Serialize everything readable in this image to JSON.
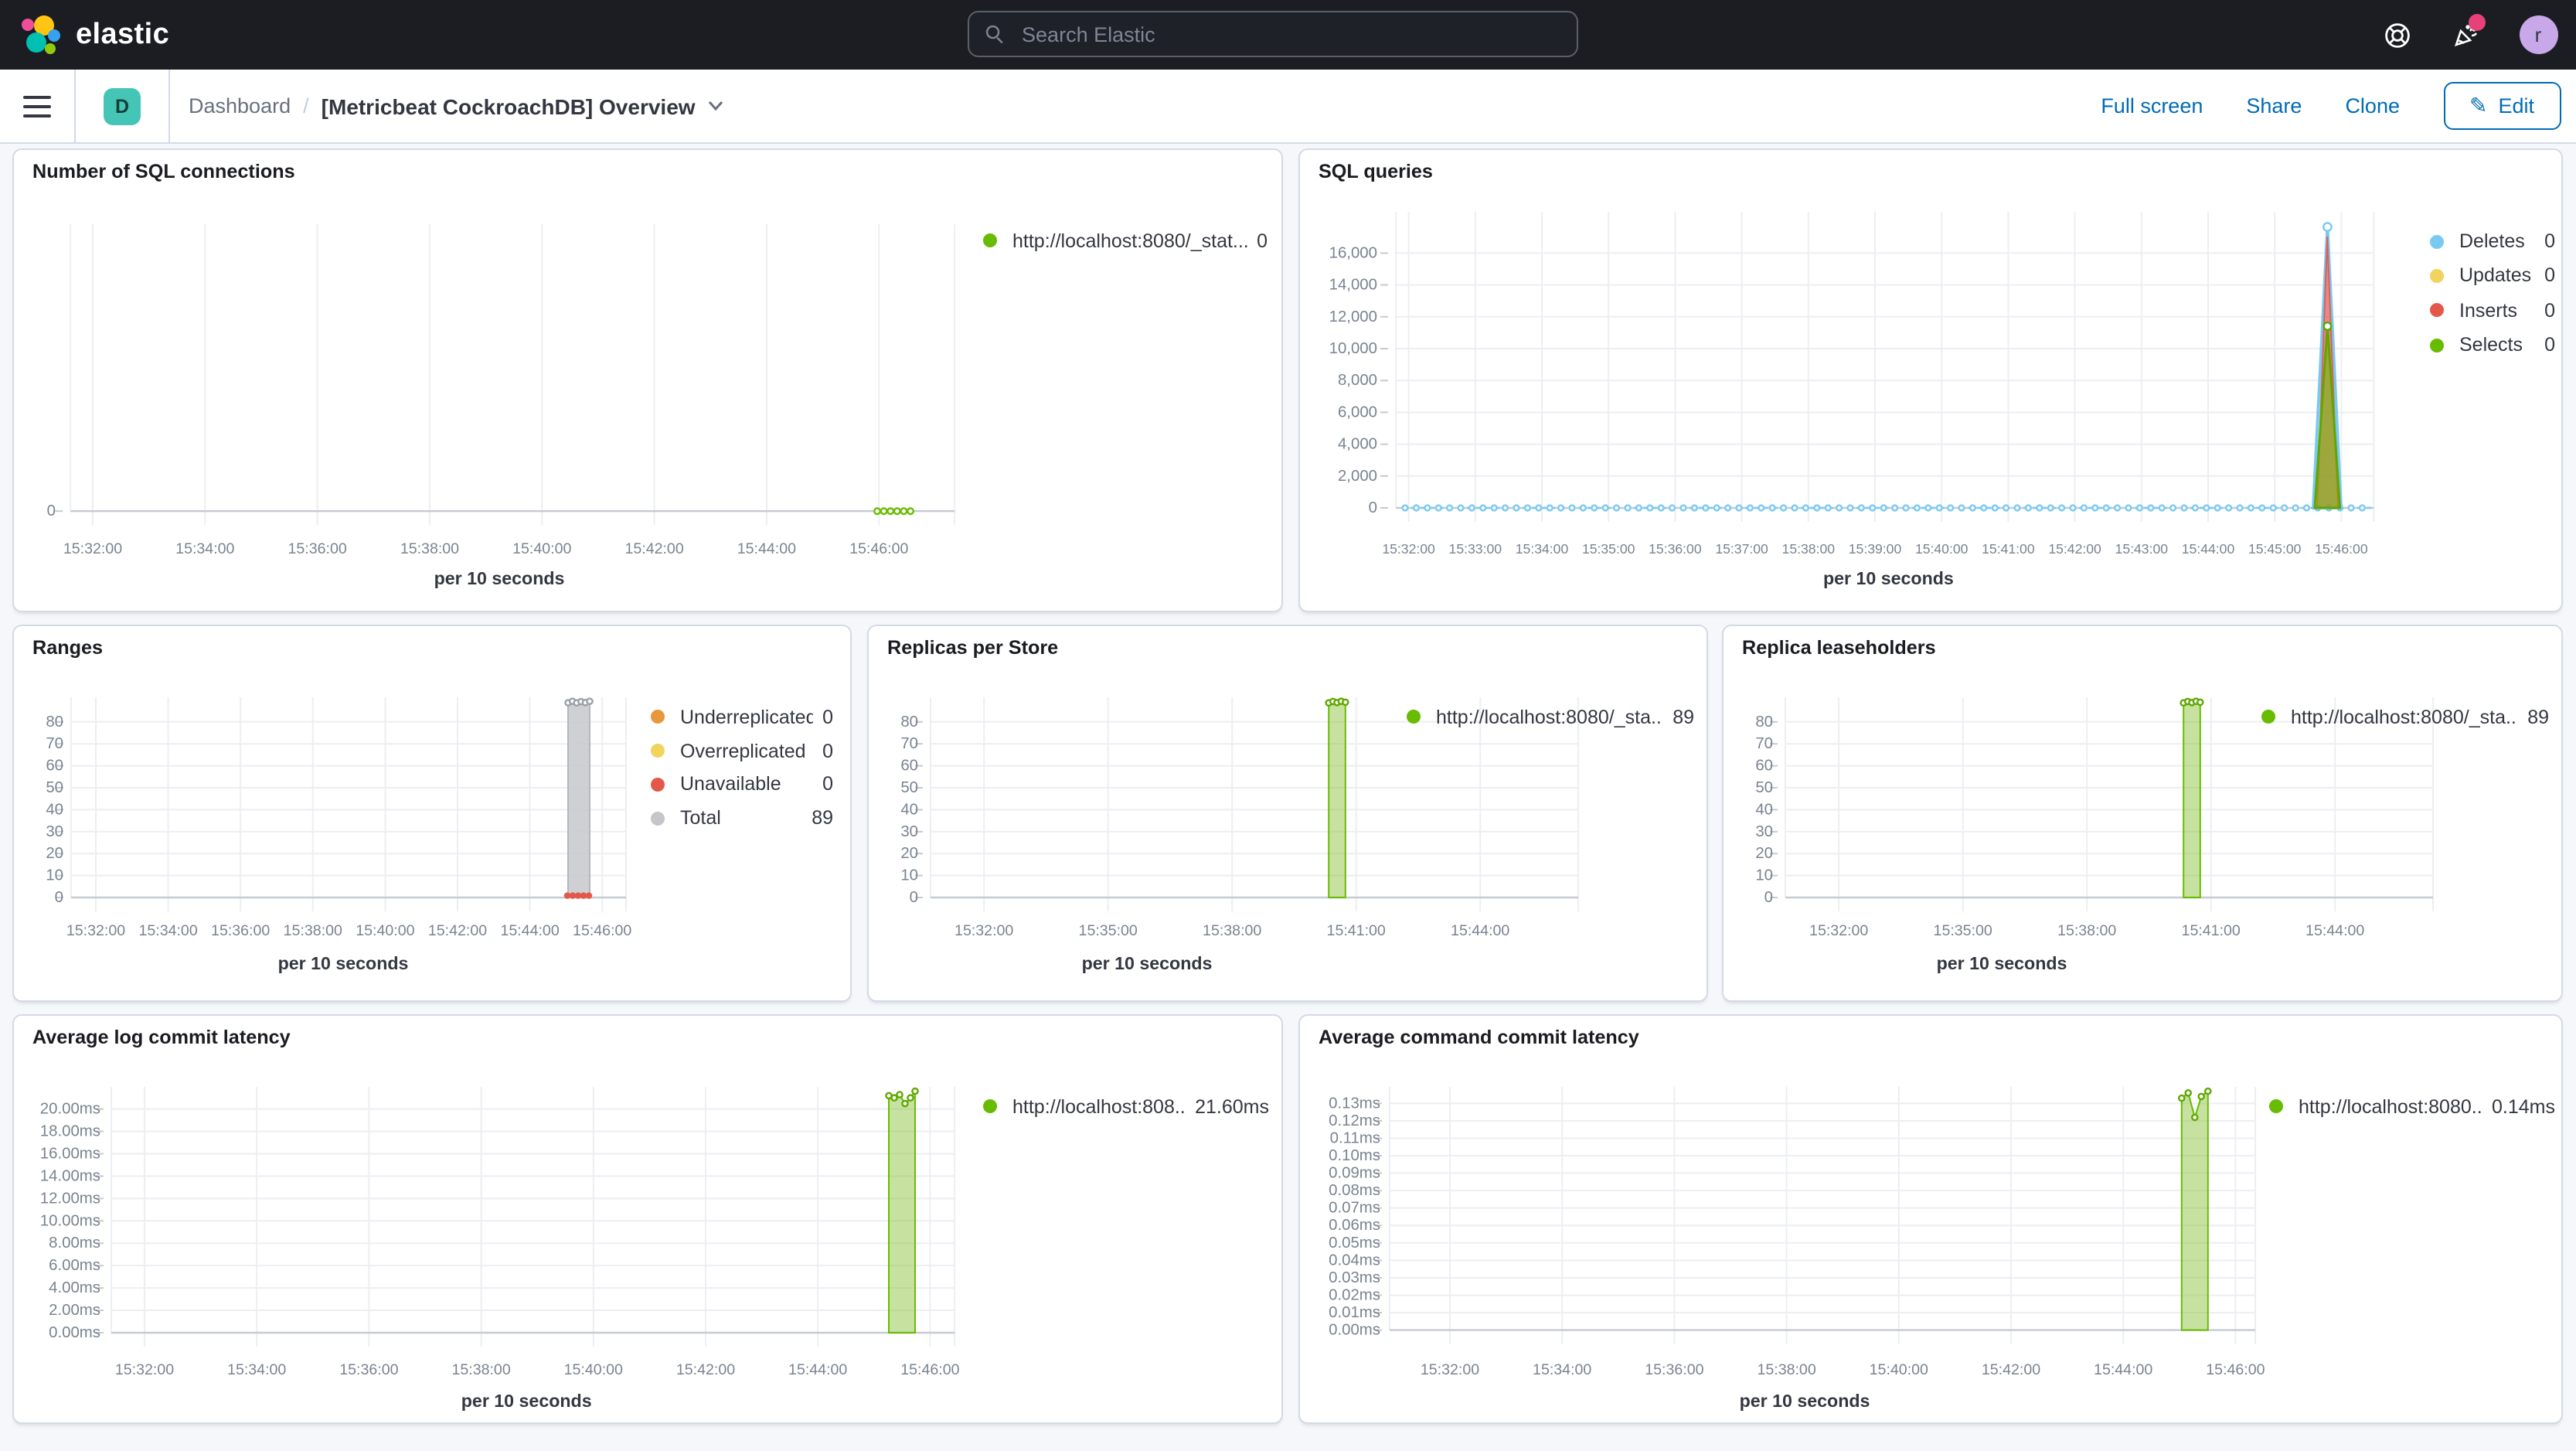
{
  "navbar": {
    "brand": "elastic",
    "search_placeholder": "Search Elastic",
    "avatar_initial": "r",
    "icons": [
      "help-icon",
      "newsfeed-icon",
      "user-avatar"
    ]
  },
  "toolbar": {
    "space_initial": "D",
    "breadcrumb_root": "Dashboard",
    "breadcrumb_sep": "/",
    "title": "[Metricbeat CockroachDB] Overview",
    "actions": [
      "Full screen",
      "Share",
      "Clone"
    ],
    "edit_label": "Edit"
  },
  "palette": {
    "header_bg": "#1B1D23",
    "link_blue": "#006BB4",
    "badge_teal": "#45C5B6",
    "avatar_purple": "#C8A8E9",
    "notification_pink": "#E7417A",
    "panel_border": "#D3DAE6",
    "page_bg": "#F5F7FA",
    "series_green": "#68BC00",
    "series_blue": "#79C9F2",
    "series_yellow": "#F1D35E",
    "series_red": "#E4584C",
    "series_orange": "#E8973C",
    "series_grey": "#C4C6C9"
  },
  "chart_data": [
    {
      "id": "sql_connections",
      "type": "line",
      "title": "Number of SQL connections",
      "x_label": "per 10 seconds",
      "x_ticks": [
        "15:32:00",
        "15:34:00",
        "15:36:00",
        "15:38:00",
        "15:40:00",
        "15:42:00",
        "15:44:00",
        "15:46:00"
      ],
      "y_ticks": [
        "0"
      ],
      "ylim": [
        0,
        1
      ],
      "legend_position": "right",
      "legend": [
        {
          "label": "http://localhost:8080/_stat...",
          "value": "0",
          "color": "#68BC00"
        }
      ],
      "series": [
        {
          "name": "http://localhost:8080/_stat...",
          "color": "#68BC00",
          "x": [
            "15:45:50",
            "15:46:00",
            "15:46:10",
            "15:46:20",
            "15:46:30",
            "15:46:40"
          ],
          "values": [
            0,
            0,
            0,
            0,
            0,
            0
          ]
        }
      ]
    },
    {
      "id": "sql_queries",
      "type": "line",
      "title": "SQL queries",
      "x_label": "per 10 seconds",
      "x_ticks": [
        "15:32:00",
        "15:33:00",
        "15:34:00",
        "15:35:00",
        "15:36:00",
        "15:37:00",
        "15:38:00",
        "15:39:00",
        "15:40:00",
        "15:41:00",
        "15:42:00",
        "15:43:00",
        "15:44:00",
        "15:45:00",
        "15:46:00"
      ],
      "y_ticks": [
        "0",
        "2,000",
        "4,000",
        "6,000",
        "8,000",
        "10,000",
        "12,000",
        "14,000",
        "16,000"
      ],
      "ylim": [
        0,
        18000
      ],
      "legend_position": "right",
      "legend": [
        {
          "label": "Deletes",
          "value": "0",
          "color": "#79C9F2"
        },
        {
          "label": "Updates",
          "value": "0",
          "color": "#F1D35E"
        },
        {
          "label": "Inserts",
          "value": "0",
          "color": "#E4584C"
        },
        {
          "label": "Selects",
          "value": "0",
          "color": "#68BC00"
        }
      ],
      "series": [
        {
          "name": "Deletes",
          "color": "#79C9F2",
          "baseline_value": 0,
          "spike": {
            "time": "15:45:50",
            "peak": 17600
          }
        },
        {
          "name": "Updates",
          "color": "#F1D35E",
          "baseline_value": 0,
          "spike": null
        },
        {
          "name": "Inserts",
          "color": "#E4584C",
          "baseline_value": 0,
          "spike": {
            "time": "15:45:50",
            "peak": 17300
          }
        },
        {
          "name": "Selects",
          "color": "#68BC00",
          "baseline_value": 0,
          "spike": {
            "time": "15:45:50",
            "peak": 11400
          }
        }
      ]
    },
    {
      "id": "ranges",
      "type": "area",
      "title": "Ranges",
      "x_label": "per 10 seconds",
      "x_ticks": [
        "15:32:00",
        "15:34:00",
        "15:36:00",
        "15:38:00",
        "15:40:00",
        "15:42:00",
        "15:44:00",
        "15:46:00"
      ],
      "y_ticks": [
        "0",
        "10",
        "20",
        "30",
        "40",
        "50",
        "60",
        "70",
        "80"
      ],
      "ylim": [
        0,
        91
      ],
      "legend_position": "right",
      "legend": [
        {
          "label": "Underreplicated",
          "value": "0",
          "color": "#E8973C"
        },
        {
          "label": "Overreplicated",
          "value": "0",
          "color": "#F1D35E"
        },
        {
          "label": "Unavailable",
          "value": "0",
          "color": "#E4584C"
        },
        {
          "label": "Total",
          "value": "89",
          "color": "#C4C6C9"
        }
      ],
      "series": [
        {
          "name": "Total",
          "color": "#C4C6C9",
          "time": "~15:45:30-15:46:00",
          "values": [
            89,
            89,
            89,
            89,
            89,
            89
          ]
        },
        {
          "name": "Unavailable",
          "color": "#E4584C",
          "time": "~15:45:30-15:46:00",
          "values": [
            0,
            0,
            0,
            0,
            0
          ]
        },
        {
          "name": "Underreplicated",
          "color": "#E8973C",
          "values": [
            0
          ]
        },
        {
          "name": "Overreplicated",
          "color": "#F1D35E",
          "values": [
            0
          ]
        }
      ]
    },
    {
      "id": "replicas_per_store",
      "type": "area",
      "title": "Replicas per Store",
      "x_label": "per 10 seconds",
      "x_ticks": [
        "15:32:00",
        "15:35:00",
        "15:38:00",
        "15:41:00",
        "15:44:00"
      ],
      "y_ticks": [
        "0",
        "10",
        "20",
        "30",
        "40",
        "50",
        "60",
        "70",
        "80"
      ],
      "ylim": [
        0,
        91
      ],
      "legend_position": "right",
      "legend": [
        {
          "label": "http://localhost:8080/_sta...",
          "value": "89",
          "color": "#68BC00"
        }
      ],
      "series": [
        {
          "name": "http://localhost:8080/_sta...",
          "color": "#68BC00",
          "values": [
            89,
            89,
            89,
            89,
            89
          ]
        }
      ]
    },
    {
      "id": "replica_leaseholders",
      "type": "area",
      "title": "Replica leaseholders",
      "x_label": "per 10 seconds",
      "x_ticks": [
        "15:32:00",
        "15:35:00",
        "15:38:00",
        "15:41:00",
        "15:44:00"
      ],
      "y_ticks": [
        "0",
        "10",
        "20",
        "30",
        "40",
        "50",
        "60",
        "70",
        "80"
      ],
      "ylim": [
        0,
        91
      ],
      "legend_position": "right",
      "legend": [
        {
          "label": "http://localhost:8080/_sta...",
          "value": "89",
          "color": "#68BC00"
        }
      ],
      "series": [
        {
          "name": "http://localhost:8080/_sta...",
          "color": "#68BC00",
          "values": [
            89,
            89,
            89,
            89,
            89
          ]
        }
      ]
    },
    {
      "id": "avg_log_commit_latency",
      "type": "area",
      "title": "Average log commit latency",
      "x_label": "per 10 seconds",
      "x_ticks": [
        "15:32:00",
        "15:34:00",
        "15:36:00",
        "15:38:00",
        "15:40:00",
        "15:42:00",
        "15:44:00",
        "15:46:00"
      ],
      "y_ticks": [
        "0.00ms",
        "2.00ms",
        "4.00ms",
        "6.00ms",
        "8.00ms",
        "10.00ms",
        "12.00ms",
        "14.00ms",
        "16.00ms",
        "18.00ms",
        "20.00ms"
      ],
      "ylim": [
        0,
        22
      ],
      "legend_position": "right",
      "legend": [
        {
          "label": "http://localhost:808...",
          "value": "21.60ms",
          "color": "#68BC00"
        }
      ],
      "series": [
        {
          "name": "http://localhost:808...",
          "color": "#68BC00",
          "values_ms": [
            21.2,
            21.0,
            21.3,
            20.5,
            21.0,
            21.6
          ]
        }
      ]
    },
    {
      "id": "avg_command_commit_latency",
      "type": "area",
      "title": "Average command commit latency",
      "x_label": "per 10 seconds",
      "x_ticks": [
        "15:32:00",
        "15:34:00",
        "15:36:00",
        "15:38:00",
        "15:40:00",
        "15:42:00",
        "15:44:00",
        "15:46:00"
      ],
      "y_ticks": [
        "0.00ms",
        "0.01ms",
        "0.02ms",
        "0.03ms",
        "0.04ms",
        "0.05ms",
        "0.06ms",
        "0.07ms",
        "0.08ms",
        "0.09ms",
        "0.10ms",
        "0.11ms",
        "0.12ms",
        "0.13ms"
      ],
      "ylim": [
        0,
        0.14
      ],
      "legend_position": "right",
      "legend": [
        {
          "label": "http://localhost:8080...",
          "value": "0.14ms",
          "color": "#68BC00"
        }
      ],
      "series": [
        {
          "name": "http://localhost:8080...",
          "color": "#68BC00",
          "values_ms": [
            0.133,
            0.136,
            0.122,
            0.134,
            0.137
          ]
        }
      ]
    }
  ]
}
